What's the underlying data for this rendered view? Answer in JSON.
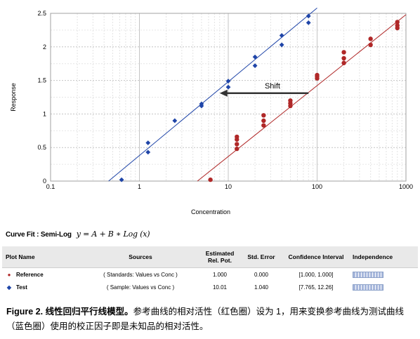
{
  "chart_data": {
    "type": "scatter",
    "x_scale": "log",
    "xlim": [
      0.1,
      1000
    ],
    "ylim": [
      0,
      2.5
    ],
    "xlabel": "Concentration",
    "ylabel": "Response",
    "x_ticks": [
      0.1,
      1,
      10,
      100,
      1000
    ],
    "x_tick_labels": [
      "0.1",
      "1",
      "10",
      "100",
      "1000"
    ],
    "y_ticks": [
      0,
      0.5,
      1,
      1.5,
      2,
      2.5
    ],
    "y_tick_labels": [
      "0",
      "0.5",
      "1",
      "1.5",
      "2",
      "2.5"
    ],
    "grid": true,
    "series": [
      {
        "name": "Test",
        "color": "#1f45a8",
        "marker": "diamond",
        "points": [
          [
            0.63,
            0.02
          ],
          [
            1.25,
            0.43
          ],
          [
            1.25,
            0.57
          ],
          [
            2.5,
            0.9
          ],
          [
            5,
            1.12
          ],
          [
            5,
            1.15
          ],
          [
            10,
            1.4
          ],
          [
            10,
            1.49
          ],
          [
            20,
            1.72
          ],
          [
            20,
            1.85
          ],
          [
            40,
            2.03
          ],
          [
            40,
            2.17
          ],
          [
            80,
            2.36
          ],
          [
            80,
            2.46
          ]
        ],
        "fit": [
          [
            0.45,
            0
          ],
          [
            100,
            2.58
          ]
        ]
      },
      {
        "name": "Reference",
        "color": "#b02828",
        "marker": "circle",
        "points": [
          [
            6.3,
            0.02
          ],
          [
            12.5,
            0.48
          ],
          [
            12.5,
            0.55
          ],
          [
            12.5,
            0.62
          ],
          [
            12.5,
            0.66
          ],
          [
            25,
            0.83
          ],
          [
            25,
            0.9
          ],
          [
            25,
            0.98
          ],
          [
            50,
            1.12
          ],
          [
            50,
            1.16
          ],
          [
            50,
            1.2
          ],
          [
            100,
            1.53
          ],
          [
            100,
            1.56
          ],
          [
            100,
            1.58
          ],
          [
            200,
            1.76
          ],
          [
            200,
            1.83
          ],
          [
            200,
            1.92
          ],
          [
            400,
            2.03
          ],
          [
            400,
            2.12
          ],
          [
            800,
            2.28
          ],
          [
            800,
            2.32
          ],
          [
            800,
            2.37
          ]
        ],
        "fit": [
          [
            4.5,
            0
          ],
          [
            1000,
            2.48
          ]
        ]
      }
    ],
    "annotation": {
      "text": "Shift",
      "from_x": 80,
      "to_x": 8,
      "y": 1.31
    }
  },
  "curve_fit": {
    "label": "Curve Fit : Semi-Log",
    "equation": "y = A + B ∗ Log (x)"
  },
  "table": {
    "headers": {
      "plot_name": "Plot Name",
      "sources": "Sources",
      "rel_pot_line1": "Estimated",
      "rel_pot_line2": "Rel. Pot.",
      "std_error": "Std. Error",
      "confidence": "Confidence Interval",
      "independence": "Independence"
    },
    "rows": [
      {
        "marker": "●",
        "color": "#b02828",
        "name": "Reference",
        "source": "( Standards: Values vs Conc )",
        "rel_pot": "1.000",
        "std_error": "0.000",
        "confidence": "[1.000, 1.000]"
      },
      {
        "marker": "◆",
        "color": "#1f45a8",
        "name": "Test",
        "source": "( Sample: Values vs Conc )",
        "rel_pot": "10.01",
        "std_error": "1.040",
        "confidence": "[7.765, 12.26]"
      }
    ]
  },
  "caption": {
    "lead": "Figure 2. 线性回归平行线模型。",
    "body": "参考曲线的相对活性（红色圈）设为 1，用来变换参考曲线为测试曲线（蓝色圈）使用的校正因子即是未知品的相对活性。"
  }
}
